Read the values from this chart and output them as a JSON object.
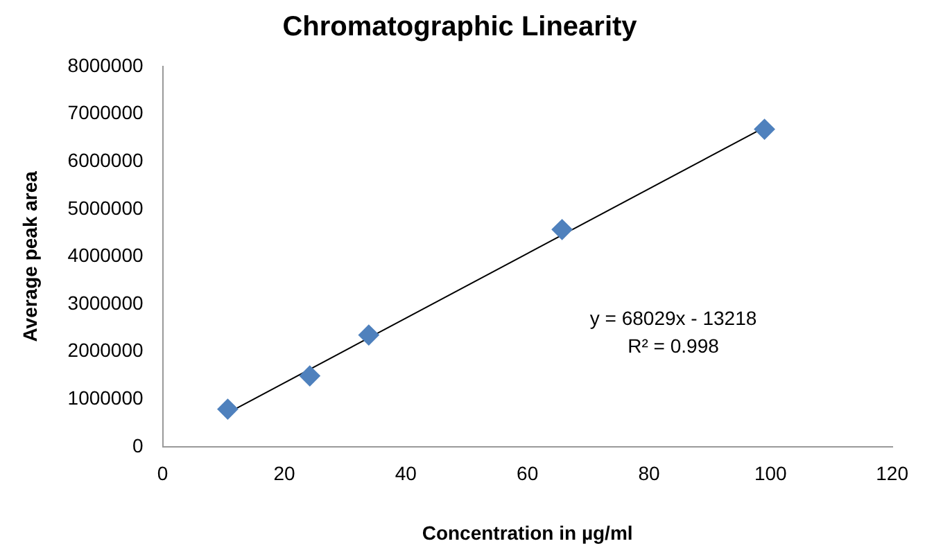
{
  "chart_data": {
    "type": "scatter",
    "title": "Chromatographic Linearity",
    "xlabel": "Concentration in µg/ml",
    "ylabel": "Average peak area",
    "x": [
      10.7,
      24.2,
      33.9,
      65.7,
      99
    ],
    "series": [
      {
        "type": "scatter",
        "color": "#4f81bd",
        "values": [
          790000,
          1490000,
          2350000,
          4570000,
          6680000
        ],
        "marker": "diamond"
      },
      {
        "type": "line",
        "color": "#000000",
        "x": [
          10.7,
          99
        ],
        "values": [
          710000,
          6720000
        ],
        "marker": "none"
      }
    ],
    "xlim": [
      0,
      120
    ],
    "xticks": [
      0,
      20,
      40,
      60,
      80,
      100,
      120
    ],
    "ylim": [
      0,
      8000000
    ],
    "yticks": [
      0,
      1000000,
      2000000,
      3000000,
      4000000,
      5000000,
      6000000,
      7000000,
      8000000
    ],
    "annotations": [
      "y = 68029x - 13218\nR² = 0.998"
    ],
    "grid": false,
    "legend": false
  }
}
